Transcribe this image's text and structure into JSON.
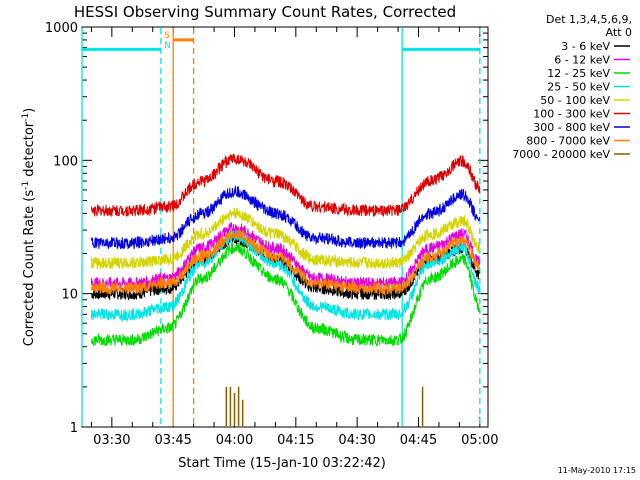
{
  "chart_data": {
    "type": "line",
    "title": "HESSI Observing Summary Count Rates, Corrected",
    "xlabel": "Start Time (15-Jan-10 03:22:42)",
    "ylabel": "Corrected Count Rate (s",
    "ylabel_sup1": "-1",
    "ylabel_mid": " detector",
    "ylabel_sup2": "-1",
    "ylabel_end": ")",
    "y_scale": "log",
    "ylim": [
      1,
      1000
    ],
    "xlim": [
      "03:22:42",
      "05:02:00"
    ],
    "x_ticks": [
      "03:30",
      "03:45",
      "04:00",
      "04:15",
      "04:30",
      "04:45",
      "05:00"
    ],
    "y_ticks": [
      "1",
      "10",
      "100",
      "1000"
    ],
    "legend_header": [
      "Det 1,3,4,5,6,9,",
      "Att 0"
    ],
    "series": [
      {
        "name": "3 - 6 keV",
        "color": "#000000",
        "x": [
          "03:25",
          "03:35",
          "03:44",
          "03:52",
          "04:00",
          "04:10",
          "04:20",
          "04:30",
          "04:40",
          "04:48",
          "04:56",
          "05:00"
        ],
        "values": [
          10,
          10,
          11,
          18,
          26,
          18,
          11,
          10,
          10,
          18,
          22,
          14
        ]
      },
      {
        "name": "6 - 12 keV",
        "color": "#e000e0",
        "x": [
          "03:25",
          "03:35",
          "03:44",
          "03:52",
          "04:00",
          "04:10",
          "04:20",
          "04:30",
          "04:40",
          "04:48",
          "04:56",
          "05:00"
        ],
        "values": [
          12,
          12,
          13,
          22,
          31,
          22,
          13,
          12,
          12,
          22,
          28,
          17
        ]
      },
      {
        "name": "12 - 25 keV",
        "color": "#00dd00",
        "x": [
          "03:25",
          "03:35",
          "03:44",
          "03:52",
          "04:00",
          "04:10",
          "04:20",
          "04:30",
          "04:40",
          "04:48",
          "04:56",
          "05:00"
        ],
        "values": [
          4.5,
          4.5,
          5.5,
          13,
          22,
          13,
          5.5,
          4.5,
          4.5,
          13,
          18,
          8
        ]
      },
      {
        "name": "25 - 50 keV",
        "color": "#00e5e5",
        "x": [
          "03:25",
          "03:35",
          "03:44",
          "03:52",
          "04:00",
          "04:10",
          "04:20",
          "04:30",
          "04:40",
          "04:48",
          "04:56",
          "05:00"
        ],
        "values": [
          7,
          7,
          8,
          17,
          27,
          17,
          8,
          7,
          7,
          17,
          22,
          11
        ]
      },
      {
        "name": "50 - 100 keV",
        "color": "#d4d400",
        "x": [
          "03:25",
          "03:35",
          "03:44",
          "03:52",
          "04:00",
          "04:10",
          "04:20",
          "04:30",
          "04:40",
          "04:48",
          "04:56",
          "05:00"
        ],
        "values": [
          17,
          17,
          18,
          28,
          40,
          28,
          18,
          17,
          17,
          28,
          35,
          22
        ]
      },
      {
        "name": "100 - 300 keV",
        "color": "#e00000",
        "x": [
          "03:25",
          "03:35",
          "03:44",
          "03:52",
          "04:00",
          "04:10",
          "04:20",
          "04:30",
          "04:40",
          "04:48",
          "04:56",
          "05:00"
        ],
        "values": [
          42,
          42,
          45,
          70,
          103,
          70,
          45,
          42,
          42,
          70,
          98,
          62
        ]
      },
      {
        "name": "300 - 800 keV",
        "color": "#0000e0",
        "x": [
          "03:25",
          "03:35",
          "03:44",
          "03:52",
          "04:00",
          "04:10",
          "04:20",
          "04:30",
          "04:40",
          "04:48",
          "04:56",
          "05:00"
        ],
        "values": [
          24,
          24,
          26,
          40,
          58,
          40,
          26,
          24,
          24,
          40,
          55,
          36
        ]
      },
      {
        "name": "800 - 7000 keV",
        "color": "#ff8000",
        "x": [
          "03:25",
          "03:35",
          "03:44",
          "03:52",
          "04:00",
          "04:10",
          "04:20",
          "04:30",
          "04:40",
          "04:48",
          "04:56",
          "05:00"
        ],
        "values": [
          11,
          11,
          12,
          19,
          28,
          19,
          12,
          11,
          11,
          19,
          25,
          16
        ]
      },
      {
        "name": "7000 - 20000 keV",
        "color": "#806000",
        "x": [
          "03:58",
          "03:59",
          "04:00",
          "04:01",
          "04:02",
          "04:46"
        ],
        "values": [
          2,
          2,
          1.8,
          2,
          1.6,
          2
        ]
      }
    ],
    "markers": [
      {
        "label": "S",
        "color": "#ff8000",
        "x": [
          "03:45",
          "03:50"
        ],
        "y": 800
      },
      {
        "label": "N",
        "color": "#00e5e5",
        "x": [
          "03:22:42",
          "03:42"
        ],
        "y": 680
      },
      {
        "label": "",
        "color": "#00e5e5",
        "x": [
          "04:41",
          "05:00"
        ],
        "y": 680
      }
    ],
    "vlines": [
      {
        "x": "03:42",
        "color": "#00e5e5",
        "style": "dashed"
      },
      {
        "x": "03:45",
        "color": "#ff8000",
        "style": "solid"
      },
      {
        "x": "03:50",
        "color": "#ff8000",
        "style": "dashed"
      },
      {
        "x": "04:41",
        "color": "#00e5e5",
        "style": "solid"
      },
      {
        "x": "05:00",
        "color": "#00e5e5",
        "style": "dashed"
      },
      {
        "x": "03:22:42",
        "color": "#00e5e5",
        "style": "solid"
      }
    ],
    "grid": false,
    "legend_position": "right"
  },
  "footer": "11-May-2010 17:15"
}
